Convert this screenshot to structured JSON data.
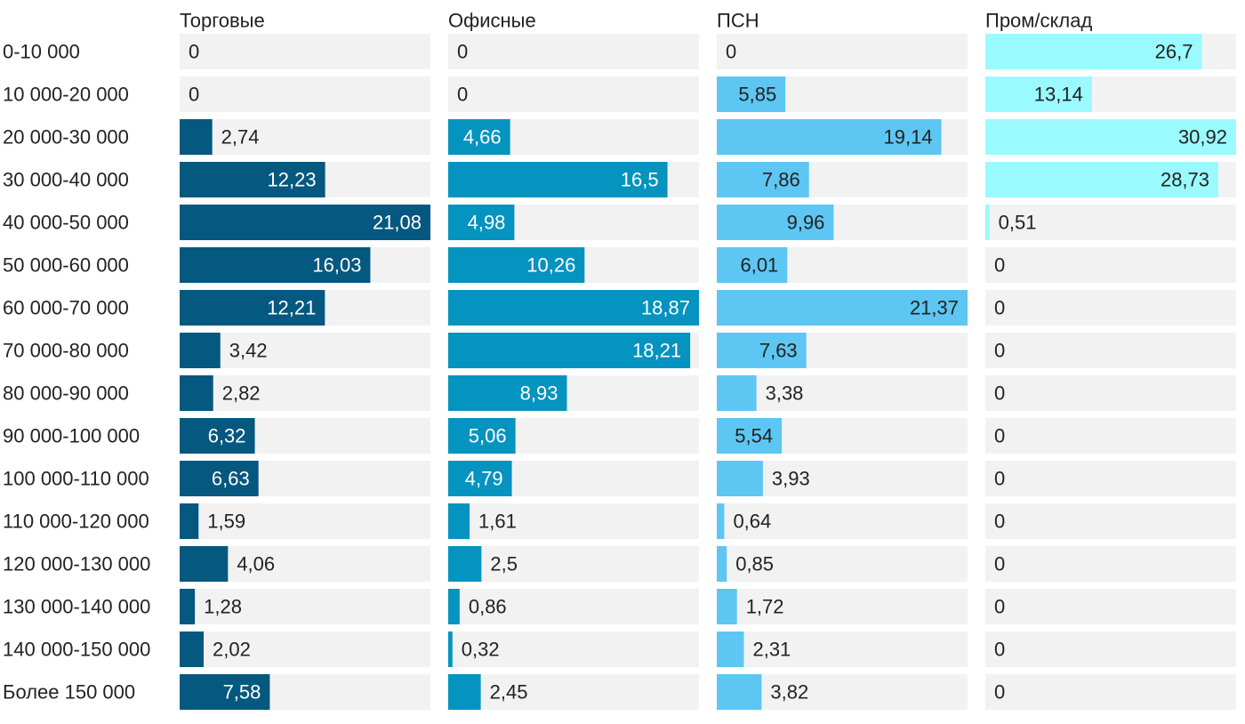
{
  "chart_data": {
    "type": "bar",
    "orientation": "horizontal",
    "layout": "small-multiples",
    "categories": [
      "0-10 000",
      "10 000-20 000",
      "20 000-30 000",
      "30 000-40 000",
      "40 000-50 000",
      "50 000-60 000",
      "60 000-70 000",
      "70 000-80 000",
      "80 000-90 000",
      "90 000-100 000",
      "100 000-110 000",
      "110 000-120 000",
      "120 000-130 000",
      "130 000-140 000",
      "140 000-150 000",
      "Более 150 000"
    ],
    "series": [
      {
        "name": "Торговые",
        "color": "#05587f",
        "max": 21.08,
        "values": [
          0,
          0,
          2.74,
          12.23,
          21.08,
          16.03,
          12.21,
          3.42,
          2.82,
          6.32,
          6.63,
          1.59,
          4.06,
          1.28,
          2.02,
          7.58
        ],
        "labels": [
          "0",
          "0",
          "2,74",
          "12,23",
          "21,08",
          "16,03",
          "12,21",
          "3,42",
          "2,82",
          "6,32",
          "6,63",
          "1,59",
          "4,06",
          "1,28",
          "2,02",
          "7,58"
        ]
      },
      {
        "name": "Офисные",
        "color": "#0593bf",
        "max": 18.87,
        "values": [
          0,
          0,
          4.66,
          16.5,
          4.98,
          10.26,
          18.87,
          18.21,
          8.93,
          5.06,
          4.79,
          1.61,
          2.5,
          0.86,
          0.32,
          2.45
        ],
        "labels": [
          "0",
          "0",
          "4,66",
          "16,5",
          "4,98",
          "10,26",
          "18,87",
          "18,21",
          "8,93",
          "5,06",
          "4,79",
          "1,61",
          "2,5",
          "0,86",
          "0,32",
          "2,45"
        ]
      },
      {
        "name": "ПСН",
        "color": "#5ec6f2",
        "max": 21.37,
        "values": [
          0,
          5.85,
          19.14,
          7.86,
          9.96,
          6.01,
          21.37,
          7.63,
          3.38,
          5.54,
          3.93,
          0.64,
          0.85,
          1.72,
          2.31,
          3.82
        ],
        "labels": [
          "0",
          "5,85",
          "19,14",
          "7,86",
          "9,96",
          "6,01",
          "21,37",
          "7,63",
          "3,38",
          "5,54",
          "3,93",
          "0,64",
          "0,85",
          "1,72",
          "2,31",
          "3,82"
        ]
      },
      {
        "name": "Пром/склад",
        "color": "#9afaff",
        "max": 30.92,
        "values": [
          26.7,
          13.14,
          30.92,
          28.73,
          0.51,
          0,
          0,
          0,
          0,
          0,
          0,
          0,
          0,
          0,
          0,
          0
        ],
        "labels": [
          "26,7",
          "13,14",
          "30,92",
          "28,73",
          "0,51",
          "0",
          "0",
          "0",
          "0",
          "0",
          "0",
          "0",
          "0",
          "0",
          "0",
          "0"
        ]
      }
    ],
    "track_color": "#f2f2f2",
    "grid": false,
    "legend": "none",
    "value_labels": true
  }
}
